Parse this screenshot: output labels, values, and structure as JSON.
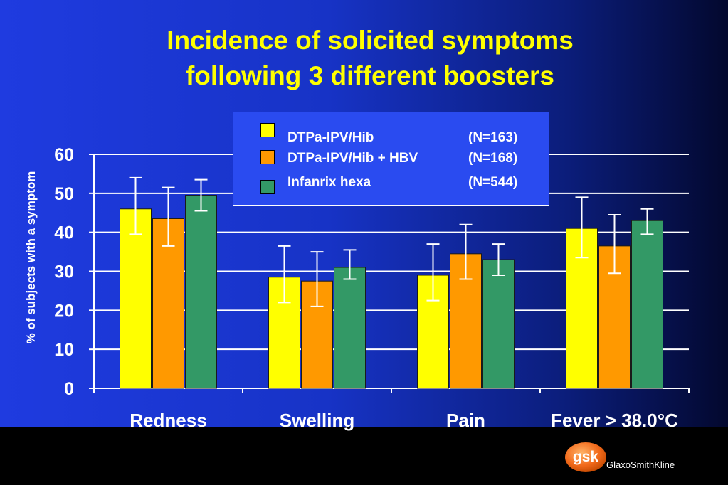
{
  "slide": {
    "title_line1": "Incidence of solicited symptoms",
    "title_line2": "following 3 different boosters",
    "brand_name": "GlaxoSmithKline",
    "logo_text": "gsk",
    "background_color": "#1a36d0",
    "title_color": "#ffff00"
  },
  "chart_data": {
    "type": "bar",
    "title": "Incidence of solicited symptoms following 3 different boosters",
    "xlabel": "",
    "ylabel": "% of subjects with a symptom",
    "ylim": [
      0,
      60
    ],
    "yticks": [
      0,
      10,
      20,
      30,
      40,
      50,
      60
    ],
    "grid": true,
    "legend_position": "top-center",
    "categories": [
      "Redness",
      "Swelling",
      "Pain",
      "Fever > 38.0°C"
    ],
    "series": [
      {
        "name": "DTPa-IPV/Hib",
        "n_label": "(N=163)",
        "color": "#ffff00",
        "values": [
          46,
          28.5,
          29,
          41
        ],
        "ci_low": [
          39.5,
          22,
          22.5,
          33.5
        ],
        "ci_high": [
          54,
          36.5,
          37,
          49
        ]
      },
      {
        "name": "DTPa-IPV/Hib + HBV",
        "n_label": "(N=168)",
        "color": "#ff9900",
        "values": [
          43.5,
          27.5,
          34.5,
          36.5
        ],
        "ci_low": [
          36.5,
          21,
          28,
          29.5
        ],
        "ci_high": [
          51.5,
          35,
          42,
          44.5
        ]
      },
      {
        "name": "Infanrix hexa",
        "n_label": "(N=544)",
        "color": "#339966",
        "values": [
          49.5,
          31,
          33,
          43
        ],
        "ci_low": [
          45.5,
          28,
          29,
          39.5
        ],
        "ci_high": [
          53.5,
          35.5,
          37,
          46
        ]
      }
    ]
  }
}
